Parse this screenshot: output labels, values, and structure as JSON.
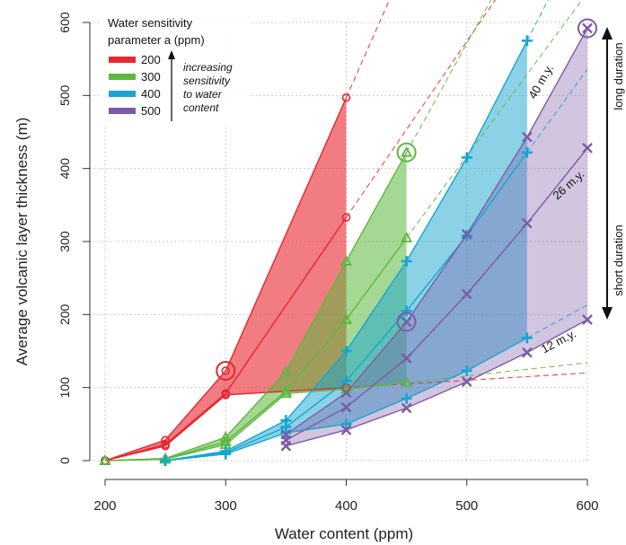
{
  "chart_data": {
    "type": "area",
    "title": "",
    "xlabel": "Water content (ppm)",
    "ylabel": "Average volcanic layer thickness  (m)",
    "xlim": [
      200,
      600
    ],
    "ylim": [
      0,
      600
    ],
    "x_ticks": [
      "200",
      "300",
      "400",
      "500",
      "600"
    ],
    "y_ticks": [
      "0",
      "100",
      "200",
      "300",
      "400",
      "500",
      "600"
    ],
    "grid": true,
    "legend": {
      "title_line1": "Water sensitivity",
      "title_line2": "parameter a (ppm)",
      "placement": "top-left",
      "note": [
        "increasing",
        "sensitivity",
        "to water",
        "content"
      ]
    },
    "series": [
      {
        "name": "200",
        "color": "#e8262e",
        "marker": "circle",
        "bounds": {
          "12": [
            [
              200,
              0
            ],
            [
              250,
              20
            ],
            [
              300,
              90
            ],
            [
              400,
              100
            ]
          ],
          "26": [
            [
              200,
              0
            ],
            [
              250,
              22
            ],
            [
              300,
              92
            ],
            [
              400,
              333
            ]
          ],
          "40": [
            [
              200,
              0
            ],
            [
              250,
              28
            ],
            [
              300,
              123
            ],
            [
              400,
              497
            ]
          ]
        },
        "extrap_x": [
          400,
          425
        ]
      },
      {
        "name": "300",
        "color": "#5db83e",
        "marker": "triangle",
        "bounds": {
          "12": [
            [
              200,
              0
            ],
            [
              250,
              2
            ],
            [
              300,
              22
            ],
            [
              350,
              92
            ],
            [
              400,
              98
            ],
            [
              450,
              107
            ]
          ],
          "26": [
            [
              200,
              0
            ],
            [
              250,
              2
            ],
            [
              300,
              26
            ],
            [
              350,
              95
            ],
            [
              400,
              193
            ],
            [
              450,
              305
            ]
          ],
          "40": [
            [
              200,
              0
            ],
            [
              250,
              3
            ],
            [
              300,
              32
            ],
            [
              350,
              122
            ],
            [
              400,
              273
            ],
            [
              450,
              422
            ]
          ]
        },
        "extrap_x": [
          450,
          500
        ]
      },
      {
        "name": "400",
        "color": "#17a6cf",
        "marker": "plus",
        "bounds": {
          "12": [
            [
              250,
              0
            ],
            [
              300,
              9
            ],
            [
              350,
              38
            ],
            [
              400,
              50
            ],
            [
              450,
              85
            ],
            [
              500,
              123
            ],
            [
              550,
              168
            ]
          ],
          "26": [
            [
              250,
              0
            ],
            [
              300,
              11
            ],
            [
              350,
              46
            ],
            [
              400,
              109
            ],
            [
              450,
              205
            ],
            [
              500,
              308
            ],
            [
              550,
              422
            ]
          ],
          "40": [
            [
              250,
              0
            ],
            [
              300,
              13
            ],
            [
              350,
              55
            ],
            [
              400,
              150
            ],
            [
              450,
              273
            ],
            [
              500,
              415
            ],
            [
              550,
              575
            ]
          ]
        },
        "extrap_x": [
          550,
          575
        ]
      },
      {
        "name": "500",
        "color": "#7d5aa6",
        "marker": "x",
        "bounds": {
          "12": [
            [
              350,
              20
            ],
            [
              400,
              42
            ],
            [
              450,
              72
            ],
            [
              500,
              108
            ],
            [
              550,
              148
            ],
            [
              600,
              193
            ]
          ],
          "26": [
            [
              350,
              28
            ],
            [
              400,
              73
            ],
            [
              450,
              140
            ],
            [
              500,
              228
            ],
            [
              550,
              325
            ],
            [
              600,
              428
            ]
          ],
          "40": [
            [
              350,
              36
            ],
            [
              400,
              93
            ],
            [
              450,
              190
            ],
            [
              500,
              310
            ],
            [
              550,
              443
            ],
            [
              600,
              592
            ]
          ]
        },
        "extrap_x": null
      }
    ],
    "duration_labels": [
      "40 m.y.",
      "26 m.y.",
      "12 m.y."
    ],
    "side_labels": {
      "long": "long duration",
      "short": "short duration"
    },
    "highlighted_points": [
      {
        "series": "200",
        "x": 300,
        "y": 123
      },
      {
        "series": "300",
        "x": 450,
        "y": 422
      },
      {
        "series": "500",
        "x": 450,
        "y": 190
      },
      {
        "series": "500",
        "x": 600,
        "y": 592
      }
    ]
  }
}
